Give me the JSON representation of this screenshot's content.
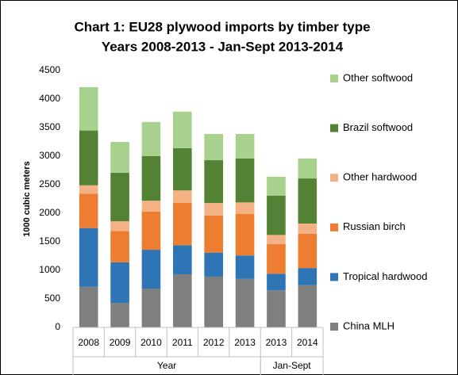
{
  "chart_data": {
    "type": "stacked_bar",
    "title": "Chart 1: EU28 plywood imports by timber type",
    "subtitle": "Years 2008-2013 - Jan-Sept 2013-2014",
    "y_label": "1000 cubic meters",
    "categories": [
      "2008",
      "2009",
      "2010",
      "2011",
      "2012",
      "2013",
      "2013",
      "2014"
    ],
    "groups": [
      {
        "label": "Year",
        "size": 6
      },
      {
        "label": "Jan-Sept",
        "size": 2
      }
    ],
    "series": [
      {
        "name": "China MLH",
        "color": "#7f7f7f",
        "values": [
          710,
          430,
          680,
          930,
          890,
          850,
          650,
          740
        ]
      },
      {
        "name": "Tropical hardwood",
        "color": "#2e75b6",
        "values": [
          1030,
          710,
          680,
          510,
          420,
          410,
          290,
          300
        ]
      },
      {
        "name": "Russian birch",
        "color": "#ed7d31",
        "values": [
          600,
          550,
          670,
          740,
          650,
          730,
          520,
          600
        ]
      },
      {
        "name": "Other hardwood",
        "color": "#f4b183",
        "values": [
          150,
          170,
          190,
          220,
          220,
          200,
          160,
          180
        ]
      },
      {
        "name": "Brazil softwood",
        "color": "#548235",
        "values": [
          960,
          850,
          780,
          740,
          750,
          770,
          690,
          790
        ]
      },
      {
        "name": "Other softwood",
        "color": "#a9d18e",
        "values": [
          760,
          540,
          600,
          640,
          460,
          430,
          330,
          350
        ]
      }
    ],
    "ylim": [
      0,
      4500
    ],
    "yticks": [
      0,
      500,
      1000,
      1500,
      2000,
      2500,
      3000,
      3500,
      4000,
      4500
    ],
    "grid": false,
    "legend": "right"
  }
}
